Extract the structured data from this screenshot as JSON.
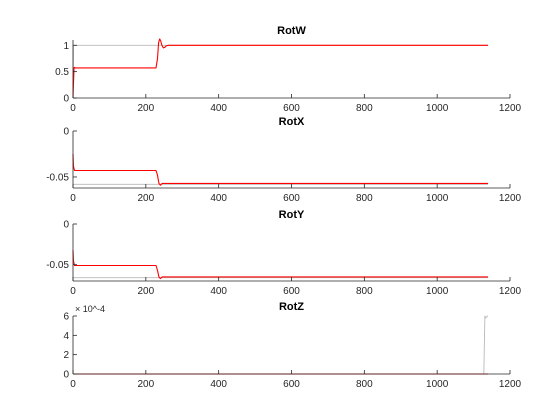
{
  "chart_data": [
    {
      "type": "line",
      "title": "RotW",
      "xlim": [
        0,
        1200
      ],
      "ylim": [
        0,
        1.1
      ],
      "xticks": [
        "0",
        "200",
        "400",
        "600",
        "800",
        "1000",
        "1200"
      ],
      "yticks": [
        "0",
        "0.5",
        "1"
      ],
      "exponent_label": "",
      "series": [
        {
          "color": "#b8b8b8",
          "x": [
            0,
            1,
            232,
            1140
          ],
          "y": [
            0,
            1.0,
            1.0,
            1.0
          ]
        },
        {
          "color": "#ff0000",
          "x": [
            0,
            1,
            3,
            6,
            228,
            232,
            235,
            238,
            241,
            244,
            248,
            252,
            256,
            262,
            270,
            280,
            1140
          ],
          "y": [
            0,
            0.25,
            0.58,
            0.57,
            0.57,
            0.75,
            1.05,
            1.12,
            1.08,
            1.0,
            0.95,
            0.96,
            0.99,
            1.0,
            1.0,
            1.0,
            1.0
          ]
        }
      ]
    },
    {
      "type": "line",
      "title": "RotX",
      "xlim": [
        0,
        1200
      ],
      "ylim": [
        -0.062,
        0
      ],
      "xticks": [
        "0",
        "200",
        "400",
        "600",
        "800",
        "1000",
        "1200"
      ],
      "yticks": [
        "-0.05",
        "0"
      ],
      "exponent_label": "",
      "series": [
        {
          "color": "#b8b8b8",
          "x": [
            0,
            1140
          ],
          "y": [
            -0.058,
            -0.058
          ]
        },
        {
          "color": "#ff0000",
          "x": [
            0,
            1,
            4,
            228,
            232,
            236,
            240,
            245,
            1140
          ],
          "y": [
            -0.025,
            -0.038,
            -0.043,
            -0.043,
            -0.048,
            -0.057,
            -0.059,
            -0.057,
            -0.057
          ]
        }
      ]
    },
    {
      "type": "line",
      "title": "RotY",
      "xlim": [
        0,
        1200
      ],
      "ylim": [
        -0.07,
        0
      ],
      "xticks": [
        "0",
        "200",
        "400",
        "600",
        "800",
        "1000",
        "1200"
      ],
      "yticks": [
        "-0.05",
        "0"
      ],
      "exponent_label": "",
      "series": [
        {
          "color": "#b8b8b8",
          "x": [
            0,
            1140
          ],
          "y": [
            -0.066,
            -0.066
          ]
        },
        {
          "color": "#ff0000",
          "x": [
            0,
            1,
            4,
            228,
            232,
            236,
            240,
            245,
            1140
          ],
          "y": [
            -0.032,
            -0.045,
            -0.051,
            -0.051,
            -0.057,
            -0.065,
            -0.067,
            -0.065,
            -0.065
          ]
        }
      ]
    },
    {
      "type": "line",
      "title": "RotZ",
      "xlim": [
        0,
        1200
      ],
      "ylim": [
        0,
        0.0006
      ],
      "xticks": [
        "0",
        "200",
        "400",
        "600",
        "800",
        "1000",
        "1200"
      ],
      "yticks": [
        "0",
        "2",
        "4",
        "6"
      ],
      "ytick_values": [
        0,
        0.0002,
        0.0004,
        0.0006
      ],
      "exponent_label": "× 10^-4",
      "series": [
        {
          "color": "#b8b8b8",
          "x": [
            0,
            1128,
            1131,
            1133,
            1138,
            1140
          ],
          "y": [
            0,
            0,
            0.0006,
            0.00058,
            0.0006,
            0.0006
          ]
        },
        {
          "color": "#ff0000",
          "x": [
            0,
            1140
          ],
          "y": [
            0,
            0
          ]
        }
      ]
    }
  ]
}
